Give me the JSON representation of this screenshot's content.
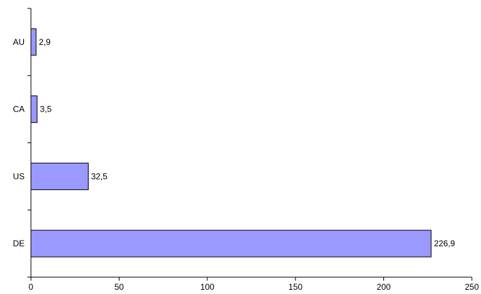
{
  "chart_data": {
    "type": "bar",
    "orientation": "horizontal",
    "categories": [
      "AU",
      "CA",
      "US",
      "DE"
    ],
    "values": [
      2.9,
      3.5,
      32.5,
      226.9
    ],
    "value_labels": [
      "2,9",
      "3,5",
      "32,5",
      "226,9"
    ],
    "xlim": [
      0,
      250
    ],
    "xticks": [
      0,
      50,
      100,
      150,
      200,
      250
    ],
    "xtick_labels": [
      "0",
      "50",
      "100",
      "150",
      "200",
      "250"
    ],
    "title": "",
    "xlabel": "",
    "ylabel": "",
    "grid": false,
    "legend": "none",
    "bar_color": "#9999ff",
    "bar_edge_color": "#000000"
  }
}
